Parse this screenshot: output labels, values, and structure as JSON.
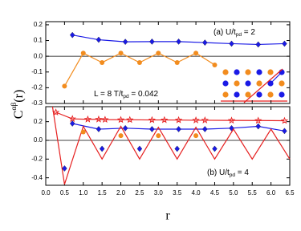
{
  "chart_data": [
    {
      "type": "line",
      "ylabel": {
        "main": "C",
        "sup": "αβ",
        "rest": "(r)"
      },
      "annotations": [
        {
          "text": "(a) U/t",
          "sub": "pd",
          "rest": " = 2"
        },
        {
          "text": "L = 8   T/t",
          "sub": "pd",
          "rest": " = 0.042"
        }
      ],
      "xlim": [
        0,
        6.5
      ],
      "ylim": [
        -0.3,
        0.22
      ],
      "yticks": [
        0.2,
        0.1,
        {
          "value": 0,
          "label": "0.0"
        },
        -0.1,
        -0.2,
        -0.3
      ],
      "series": [
        {
          "color": "#1a1ae6",
          "marker": "diamond",
          "line": true,
          "x": [
            0.71,
            1.41,
            2.12,
            2.83,
            3.54,
            4.24,
            4.95,
            5.66,
            6.36
          ],
          "values": [
            0.135,
            0.105,
            0.092,
            0.093,
            0.093,
            0.087,
            0.08,
            0.075,
            0.08
          ]
        },
        {
          "color": "#f28c1e",
          "marker": "circle",
          "line": true,
          "x": [
            0.5,
            1.0,
            1.5,
            2.0,
            2.5,
            3.0,
            3.5,
            4.0,
            4.5
          ],
          "values": [
            -0.19,
            0.02,
            -0.04,
            0.02,
            -0.04,
            0.02,
            -0.04,
            0.02,
            -0.055
          ]
        }
      ]
    },
    {
      "type": "line",
      "xlabel": "r",
      "annotations": [
        {
          "text": "(b) U/t",
          "sub": "pd",
          "rest": " = 4"
        }
      ],
      "xlim": [
        0,
        6.5
      ],
      "ylim": [
        -0.48,
        0.36
      ],
      "xticks": [
        {
          "value": 0,
          "label": "0.0"
        },
        0.5,
        {
          "value": 1,
          "label": "1.0"
        },
        1.5,
        {
          "value": 2,
          "label": "2.0"
        },
        2.5,
        {
          "value": 3,
          "label": "3.0"
        },
        3.5,
        {
          "value": 4,
          "label": "4.0"
        },
        4.5,
        {
          "value": 5,
          "label": "5.0"
        },
        5.5,
        {
          "value": 6,
          "label": "6.0"
        },
        6.5
      ],
      "yticks": [
        0.2,
        {
          "value": 0,
          "label": "0.0"
        },
        -0.2,
        -0.4
      ],
      "series": [
        {
          "color": "#e62020",
          "marker": "star",
          "line": true,
          "x": [
            0.27,
            0.71,
            1.12,
            1.41,
            1.58,
            2.0,
            2.24,
            2.83,
            3.16,
            3.54,
            4.0,
            4.24,
            4.95,
            5.66,
            6.36
          ],
          "values": [
            0.3,
            0.23,
            0.225,
            0.225,
            0.222,
            0.22,
            0.22,
            0.218,
            0.218,
            0.217,
            0.215,
            0.215,
            0.213,
            0.212,
            0.21
          ]
        },
        {
          "color": "#1a1ae6",
          "marker": "diamond",
          "line": true,
          "x": [
            0.71,
            1.41,
            2.12,
            2.83,
            3.54,
            4.24,
            4.95,
            5.66,
            6.36
          ],
          "values": [
            0.18,
            0.12,
            0.13,
            0.12,
            0.12,
            0.12,
            0.13,
            0.15,
            0.1
          ]
        },
        {
          "color": "#e62020",
          "marker": "none",
          "line": true,
          "x": [
            0.18,
            0.5,
            1.0,
            1.5,
            2.0,
            2.5,
            3.0,
            3.5,
            4.0,
            4.5,
            5.0,
            5.5,
            6.0,
            6.5
          ],
          "values": [
            0.36,
            -0.47,
            0.15,
            -0.2,
            0.15,
            -0.2,
            0.14,
            -0.2,
            0.14,
            -0.2,
            0.12,
            -0.2,
            0.12,
            -0.2
          ]
        },
        {
          "color": "#1a1ae6",
          "marker": "diamond",
          "line": false,
          "x": [
            0.5,
            1.5,
            2.5,
            3.5,
            4.5
          ],
          "values": [
            -0.3,
            -0.09,
            -0.09,
            -0.09,
            -0.09
          ]
        },
        {
          "color": "#f28c1e",
          "marker": "circle",
          "line": false,
          "x": [
            1.0,
            2.0,
            3.0,
            4.0
          ],
          "values": [
            0.09,
            0.05,
            0.05,
            0.05
          ]
        }
      ]
    }
  ]
}
